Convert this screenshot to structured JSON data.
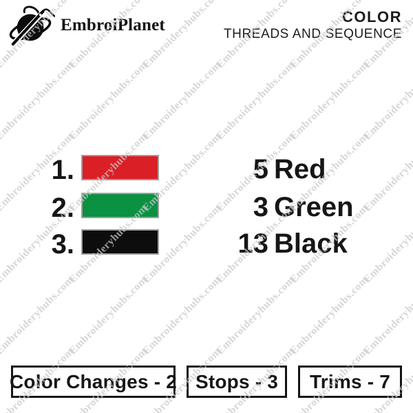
{
  "header": {
    "brand": "EmbroiPlanet",
    "title_line1": "COLOR",
    "title_line2": "THREADS AND SEQUENCE"
  },
  "watermark": {
    "text": "Embroideryhubs.com",
    "color": "#c9c9c9"
  },
  "threads": [
    {
      "index": "1.",
      "count": "5",
      "name": "Red",
      "hex": "#DB1F26"
    },
    {
      "index": "2.",
      "count": "3",
      "name": "Green",
      "hex": "#0B9142"
    },
    {
      "index": "3.",
      "count": "13",
      "name": "Black",
      "hex": "#0D0D0D"
    }
  ],
  "summary": {
    "color_changes_label": "Color Changes - 2",
    "stops_label": "Stops - 3",
    "trims_label": "Trims - 7"
  }
}
